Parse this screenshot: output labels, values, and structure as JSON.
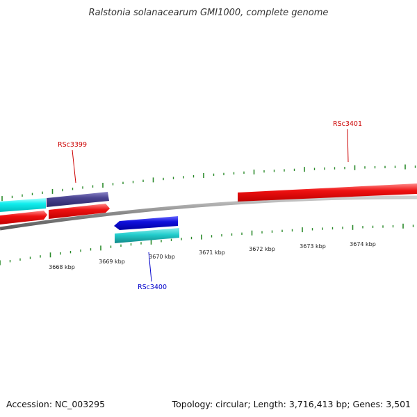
{
  "title": "Ralstonia solanacearum GMI1000, complete genome",
  "footer": {
    "accession": "Accession: NC_003295",
    "summary": "Topology: circular; Length: 3,716,413 bp; Genes: 3,501"
  },
  "ruler_labels": [
    "3668 kbp",
    "3669 kbp",
    "3670 kbp",
    "3671 kbp",
    "3672 kbp",
    "3673 kbp",
    "3674 kbp"
  ],
  "gene_labels": [
    {
      "text": "RSc3399",
      "color": "#cc0000"
    },
    {
      "text": "RSc3400",
      "color": "#0000cc"
    },
    {
      "text": "RSc3401",
      "color": "#cc0000"
    }
  ],
  "colors": {
    "forward_cds": "#ee1111",
    "reverse_cds": "#1111dd",
    "cyan_feature": "#11dddd",
    "teal_feature": "#22cccc",
    "purple_feature": "#443d88",
    "backbone": "#888888",
    "tick": "#2a8a2a"
  }
}
